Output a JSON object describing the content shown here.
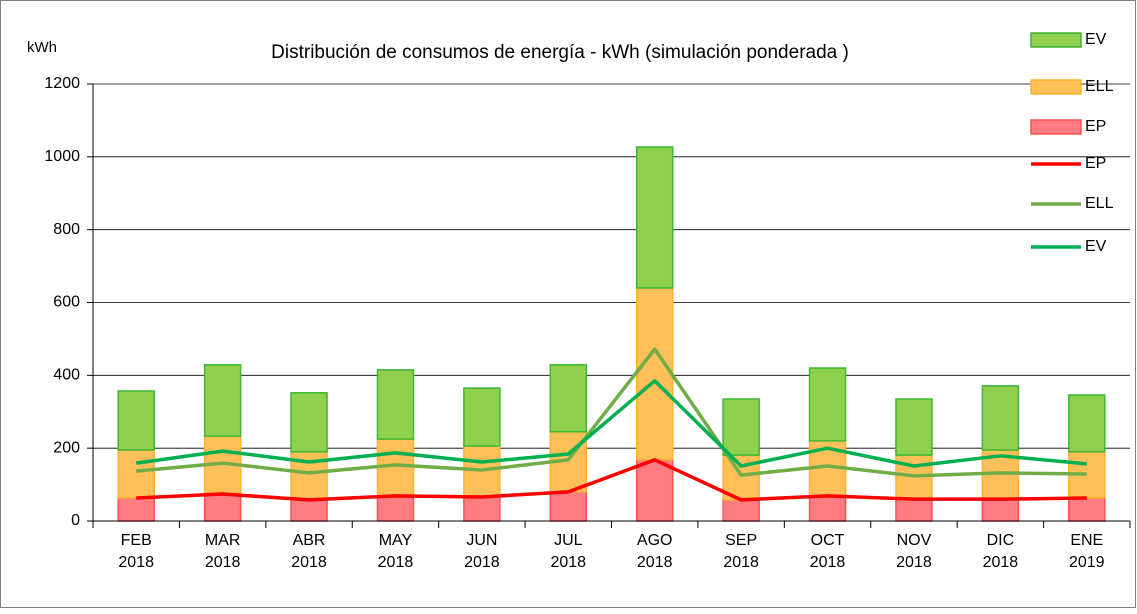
{
  "chart_data": {
    "type": "bar",
    "stacked": true,
    "title": "Distribución de consumos de energía - kWh (simulación ponderada )",
    "y_label": "kWh",
    "categories": [
      "FEB 2018",
      "MAR 2018",
      "ABR 2018",
      "MAY 2018",
      "JUN 2018",
      "JUL 2018",
      "AGO 2018",
      "SEP 2018",
      "OCT 2018",
      "NOV 2018",
      "DIC 2018",
      "ENE 2019"
    ],
    "series": [
      {
        "name": "EP",
        "type": "bar",
        "color": "#ff7c80",
        "border": "#ff5050",
        "values": [
          63,
          77,
          58,
          69,
          66,
          80,
          168,
          58,
          69,
          60,
          60,
          63
        ]
      },
      {
        "name": "ELL",
        "type": "bar",
        "color": "#ffc05a",
        "border": "#ffb030",
        "values": [
          132,
          156,
          132,
          156,
          140,
          165,
          472,
          123,
          151,
          121,
          135,
          127
        ]
      },
      {
        "name": "EV",
        "type": "bar",
        "color": "#8fd14f",
        "border": "#3cb832",
        "values": [
          162,
          196,
          162,
          190,
          159,
          184,
          387,
          154,
          200,
          154,
          176,
          156
        ]
      },
      {
        "name": "EP",
        "type": "line",
        "color": "#ff0000",
        "values": [
          63,
          74,
          58,
          69,
          66,
          80,
          168,
          58,
          69,
          60,
          60,
          63
        ]
      },
      {
        "name": "ELL",
        "type": "line",
        "color": "#70ad47",
        "values": [
          137,
          159,
          132,
          154,
          140,
          168,
          472,
          126,
          151,
          124,
          132,
          129
        ]
      },
      {
        "name": "EV",
        "type": "line",
        "color": "#00b050",
        "values": [
          159,
          192,
          162,
          187,
          162,
          184,
          385,
          151,
          200,
          151,
          179,
          157
        ]
      }
    ],
    "ylim": [
      0,
      1200
    ],
    "yticks": [
      0,
      200,
      400,
      600,
      800,
      1000,
      1200
    ],
    "grid": true,
    "legend": "top-right"
  }
}
